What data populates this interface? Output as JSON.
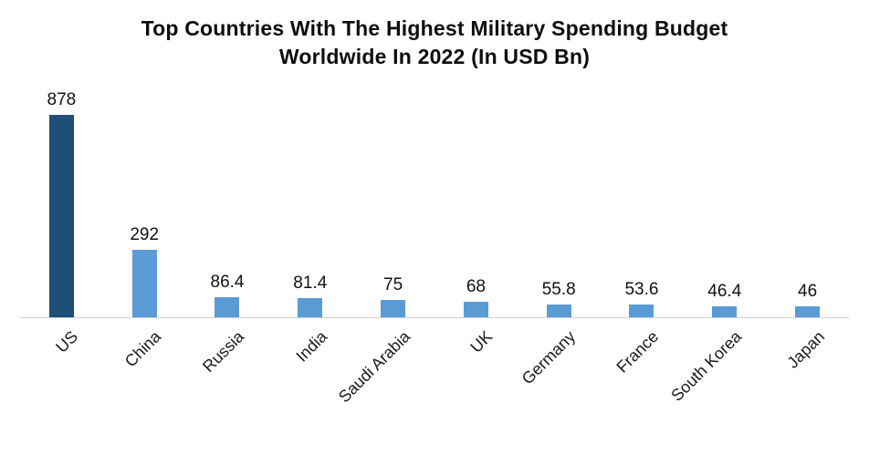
{
  "chart": {
    "title": "Top Countries With The Highest Military Spending Budget Worldwide In 2022 (In USD Bn)"
  },
  "chart_data": {
    "type": "bar",
    "title": "Top Countries With The Highest Military Spending Budget Worldwide In 2022 (In USD Bn)",
    "categories": [
      "US",
      "China",
      "Russia",
      "India",
      "Saudi Arabia",
      "UK",
      "Germany",
      "France",
      "South Korea",
      "Japan"
    ],
    "values": [
      878,
      292,
      86.4,
      81.4,
      75,
      68,
      55.8,
      53.6,
      46.4,
      46
    ],
    "value_labels": [
      "878",
      "292",
      "86.4",
      "81.4",
      "75",
      "68",
      "55.8",
      "53.6",
      "46.4",
      "46"
    ],
    "xlabel": "",
    "ylabel": "",
    "ylim": [
      0,
      900
    ],
    "grid": false,
    "legend": false,
    "colors": {
      "highlight_index": 0,
      "highlight": "#1F4E79",
      "default": "#5B9BD5",
      "axis_line": "#CFCFCF",
      "text": "#111111"
    }
  }
}
